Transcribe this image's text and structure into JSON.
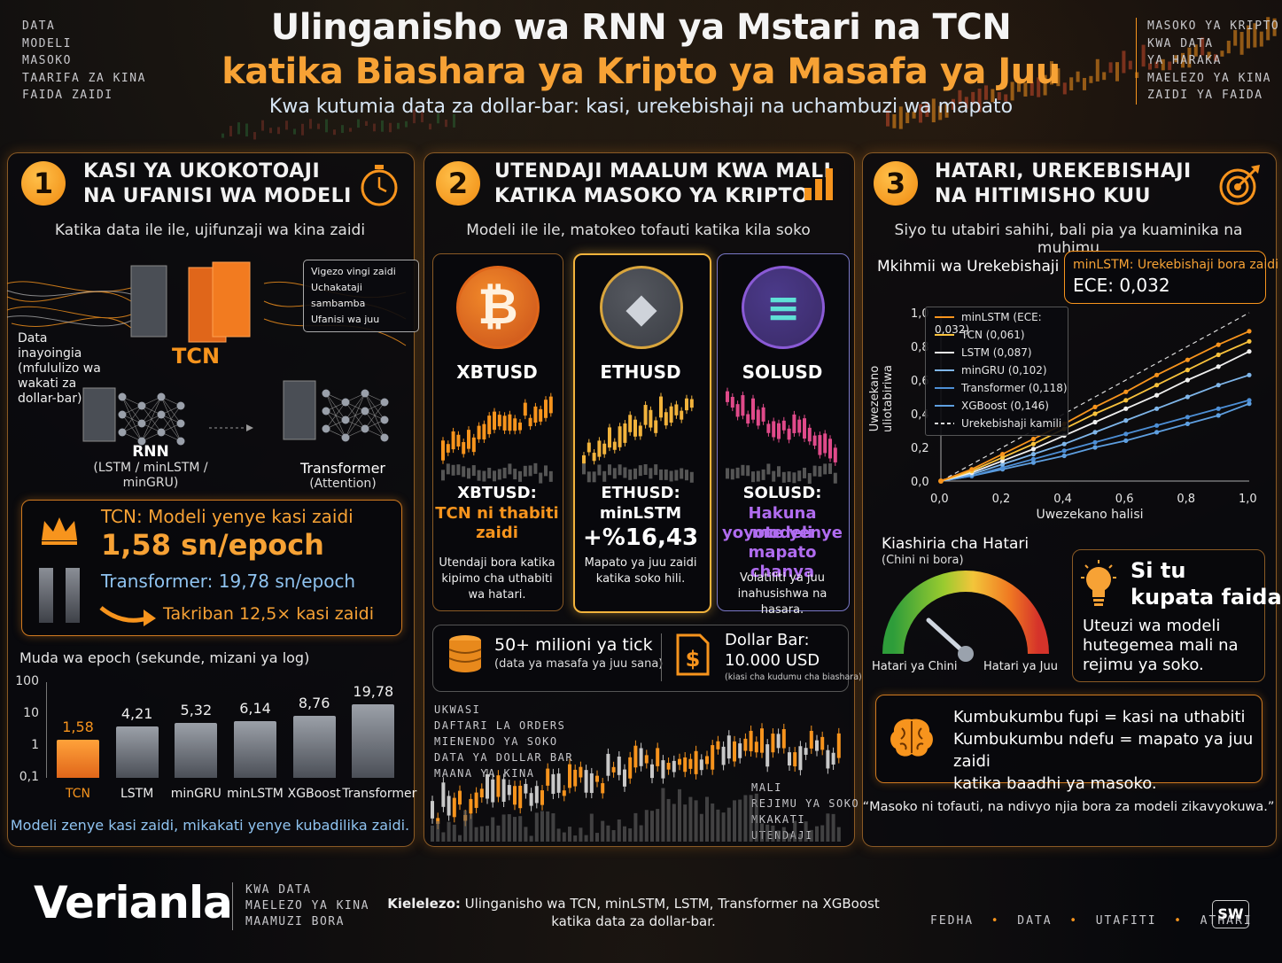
{
  "header": {
    "title_line1": "Ulinganisho wa RNN ya Mstari na TCN",
    "title_line2": "katika Biashara ya Kripto ya Masafa ya Juu",
    "subtitle": "Kwa kutumia data za dollar-bar: kasi, urekebishaji na uchambuzi wa mapato",
    "left_tags": [
      "DATA",
      "MODELI",
      "MASOKO",
      "TAARIFA ZA KINA",
      "FAIDA ZAIDI"
    ],
    "right_tags": [
      "MASOKO YA KRIPTO",
      "KWA DATA",
      "YA HARAKA",
      "MAELEZO YA KINA",
      "ZAIDI YA FAIDA"
    ]
  },
  "panel1": {
    "number": "1",
    "heading_line1": "KASI YA UKOKOTOAJI",
    "heading_line2": "NA UFANISI WA MODELI",
    "subheading": "Katika data ile ile, ujifunzaji wa kina zaidi",
    "input_label": "Data inayoingia (mfululizo wa wakati za dollar-bar)",
    "tcn_label": "TCN",
    "tcn_callout": [
      "Vigezo vingi zaidi",
      "Uchakataji sambamba",
      "Ufanisi wa juu"
    ],
    "rnn_label": "RNN",
    "rnn_sub": "(LSTM / minLSTM / minGRU)",
    "transformer_label": "Transformer",
    "transformer_sub": "(Attention)",
    "speed_title": "TCN: Modeli yenye kasi zaidi",
    "speed_value": "1,58 sn/epoch",
    "transformer_speed": "Transformer: 19,78 sn/epoch",
    "speedup": "Takriban 12,5× kasi zaidi",
    "chart_title": "Muda wa epoch (sekunde, mizani ya log)",
    "footer": "Modeli zenye kasi zaidi, mikakati yenye kubadilika zaidi.",
    "icons": [
      "stopwatch-icon",
      "crown-icon",
      "arrow-icon"
    ]
  },
  "chart_data": [
    {
      "type": "bar",
      "title": "Muda wa epoch (sekunde, mizani ya log)",
      "categories": [
        "TCN",
        "LSTM",
        "minGRU",
        "minLSTM",
        "XGBoost",
        "Transformer"
      ],
      "values": [
        1.58,
        4.21,
        5.32,
        6.14,
        8.76,
        19.78
      ],
      "value_labels": [
        "1,58",
        "4,21",
        "5,32",
        "6,14",
        "8,76",
        "19,78"
      ],
      "yscale": "log",
      "ylim": [
        0.1,
        100
      ],
      "yticks": [
        "100",
        "10",
        "1",
        "0,1"
      ],
      "highlight": "TCN",
      "highlight_color": "#f7941d"
    },
    {
      "type": "line",
      "title": "Mkihmii wa Urekebishaji",
      "xlabel": "Uwezekano halisi",
      "ylabel": "Uwezekano uliotabiriwa",
      "xlim": [
        0,
        1
      ],
      "ylim": [
        0,
        1
      ],
      "xticks": [
        "0,0",
        "0,2",
        "0,4",
        "0,6",
        "0,8",
        "1,0"
      ],
      "yticks": [
        "0,0",
        "0,2",
        "0,4",
        "0,6",
        "0,8",
        "1,0"
      ],
      "legend_position": "top-left",
      "x": [
        0,
        0.1,
        0.2,
        0.3,
        0.4,
        0.5,
        0.6,
        0.7,
        0.8,
        0.9,
        1.0
      ],
      "series": [
        {
          "name": "minLSTM (ECE: 0,032)",
          "color": "#f7941d",
          "values": [
            0,
            0.07,
            0.16,
            0.25,
            0.34,
            0.44,
            0.53,
            0.63,
            0.72,
            0.81,
            0.89
          ]
        },
        {
          "name": "TCN (0,061)",
          "color": "#f9c23c",
          "values": [
            0,
            0.06,
            0.14,
            0.22,
            0.31,
            0.4,
            0.48,
            0.57,
            0.66,
            0.75,
            0.83
          ]
        },
        {
          "name": "LSTM (0,087)",
          "color": "#f0f0f0",
          "values": [
            0,
            0.05,
            0.12,
            0.19,
            0.27,
            0.35,
            0.43,
            0.51,
            0.6,
            0.68,
            0.77
          ]
        },
        {
          "name": "minGRU (0,102)",
          "color": "#7fb6ea",
          "values": [
            0,
            0.04,
            0.1,
            0.16,
            0.22,
            0.29,
            0.36,
            0.43,
            0.5,
            0.57,
            0.63
          ]
        },
        {
          "name": "Transformer (0,118)",
          "color": "#4d8fd6",
          "values": [
            0,
            0.03,
            0.08,
            0.13,
            0.18,
            0.23,
            0.28,
            0.33,
            0.38,
            0.43,
            0.48
          ]
        },
        {
          "name": "XGBoost (0,146)",
          "color": "#5e9fe0",
          "values": [
            0,
            0.03,
            0.07,
            0.11,
            0.15,
            0.2,
            0.24,
            0.29,
            0.34,
            0.39,
            0.46
          ]
        },
        {
          "name": "Urekebishaji kamili",
          "color": "#dddddd",
          "dashed": true,
          "values": [
            0,
            0.1,
            0.2,
            0.3,
            0.4,
            0.5,
            0.6,
            0.7,
            0.8,
            0.9,
            1.0
          ]
        }
      ]
    }
  ],
  "panel2": {
    "number": "2",
    "heading_line1": "UTENDAJI MAALUM KWA MALI",
    "heading_line2": "KATIKA MASOKO YA KRIPTO",
    "subheading": "Modeli ile ile, matokeo tofauti katika kila soko",
    "assets": [
      {
        "ticker": "XBTUSD",
        "icon": "bitcoin-icon",
        "glyph": "₿",
        "result_title": "XBTUSD:",
        "result_line1": "TCN ni thabiti",
        "result_line2": "zaidi",
        "note": "Utendaji bora katika kipimo cha uthabiti wa hatari.",
        "accent": "#f7941d"
      },
      {
        "ticker": "ETHUSD",
        "icon": "ethereum-icon",
        "glyph": "◆",
        "result_title": "ETHUSD:",
        "result_line1": "minLSTM",
        "result_line2": "+%16,43",
        "note": "Mapato ya juu zaidi katika soko hili.",
        "accent": "#f9c23c"
      },
      {
        "ticker": "SOLUSD",
        "icon": "solana-icon",
        "glyph": "≡",
        "result_title": "SOLUSD:",
        "result_line1": "Hakuna modeli",
        "result_line2": "yoyote yenye",
        "result_line3": "mapato chanya",
        "note": "Volatiliti ya juu inahusishwa na hasara.",
        "accent": "#b06cf0"
      }
    ],
    "ticks_title": "50+ milioni ya tick",
    "ticks_sub": "(data ya masafa ya juu sana)",
    "dollar_title": "Dollar Bar:",
    "dollar_value": "10.000 USD",
    "dollar_sub": "(kiasi cha kudumu cha biashara)",
    "left_tags": [
      "UKWASI",
      "DAFTARI LA ORDERS",
      "MIENENDO YA SOKO",
      "DATA YA DOLLAR BAR",
      "MAANA YA KINA"
    ],
    "right_tags": [
      "MALI",
      "REJIMU YA SOKO",
      "MKAKATI",
      "UTENDAJI"
    ]
  },
  "panel3": {
    "number": "3",
    "heading_line1": "HATARI, UREKEBISHAJI",
    "heading_line2": "NA HITIMISHO KUU",
    "subheading": "Siyo tu utabiri sahihi, bali pia ya kuaminika na muhimu",
    "calib_title": "Mkihmii wa Urekebishaji",
    "best_title": "minLSTM: Urekebishaji bora zaidi",
    "best_value": "ECE: 0,032",
    "risk_title": "Kiashiria cha Hatari",
    "risk_sub": "(Chini ni bora)",
    "risk_low": "Hatari ya Chini",
    "risk_high": "Hatari ya Juu",
    "tip_title_line1": "Si tu",
    "tip_title_line2": "kupata faida",
    "tip_body": "Uteuzi wa modeli hutegemea mali na rejimu ya soko.",
    "memory_line1": "Kumbukumbu fupi = kasi na uthabiti",
    "memory_line2": "Kumbukumbu ndefu = mapato ya juu zaidi",
    "memory_line3": "katika baadhi ya masoko.",
    "quote": "“Masoko ni tofauti, na ndivyo njia bora za modeli zikavyokuwa.”"
  },
  "footer": {
    "brand": "Verianla",
    "brand_tags": [
      "KWA DATA",
      "MAELEZO YA KINA",
      "MAAMUZI BORA"
    ],
    "caption_bold": "Kielelezo:",
    "caption_line1": "Ulinganisho wa TCN, minLSTM, LSTM, Transformer na XGBoost",
    "caption_line2": "katika data za dollar-bar.",
    "topics": [
      "FEDHA",
      "DATA",
      "UTAFITI",
      "ATHARI"
    ],
    "badge": "SW"
  }
}
